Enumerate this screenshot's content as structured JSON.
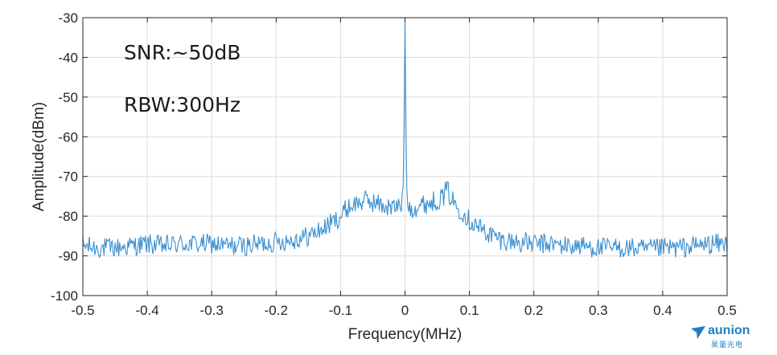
{
  "chart_data": {
    "type": "line",
    "title": "",
    "xlabel": "Frequency(MHz)",
    "ylabel": "Amplitude(dBm)",
    "xlim": [
      -0.5,
      0.5
    ],
    "ylim": [
      -100,
      -30
    ],
    "xticks": [
      -0.5,
      -0.4,
      -0.3,
      -0.2,
      -0.1,
      0,
      0.1,
      0.2,
      0.3,
      0.4,
      0.5
    ],
    "yticks": [
      -100,
      -90,
      -80,
      -70,
      -60,
      -50,
      -40,
      -30
    ],
    "xtick_labels": [
      "-0.5",
      "-0.4",
      "-0.3",
      "-0.2",
      "-0.1",
      "0",
      "0.1",
      "0.2",
      "0.3",
      "0.4",
      "0.5"
    ],
    "ytick_labels": [
      "-100",
      "-90",
      "-80",
      "-70",
      "-60",
      "-50",
      "-40",
      "-30"
    ],
    "grid": true,
    "annotations": [
      "SNR:~50dB",
      "RBW:300Hz"
    ],
    "series": [
      {
        "color": "#3a8fd0",
        "x": [
          -0.5,
          -0.475,
          -0.45,
          -0.425,
          -0.4,
          -0.375,
          -0.35,
          -0.325,
          -0.3,
          -0.275,
          -0.25,
          -0.225,
          -0.2,
          -0.175,
          -0.15,
          -0.125,
          -0.1,
          -0.09,
          -0.08,
          -0.07,
          -0.06,
          -0.05,
          -0.04,
          -0.03,
          -0.02,
          -0.01,
          -0.004,
          -0.002,
          -0.001,
          0,
          0.001,
          0.002,
          0.004,
          0.01,
          0.02,
          0.03,
          0.04,
          0.05,
          0.06,
          0.065,
          0.07,
          0.08,
          0.09,
          0.1,
          0.125,
          0.15,
          0.175,
          0.2,
          0.225,
          0.25,
          0.275,
          0.3,
          0.325,
          0.35,
          0.375,
          0.4,
          0.425,
          0.45,
          0.475,
          0.5
        ],
        "y": [
          -87.5,
          -88,
          -88,
          -87.5,
          -87,
          -87.5,
          -87,
          -87,
          -87,
          -87.5,
          -87.5,
          -87,
          -86.5,
          -86,
          -85,
          -83,
          -80,
          -78,
          -77,
          -76.5,
          -76,
          -76.5,
          -77,
          -77.5,
          -78,
          -77.5,
          -76.5,
          -70,
          -45,
          -31,
          -45,
          -70,
          -77,
          -78,
          -77.5,
          -77,
          -76.5,
          -76,
          -75,
          -73,
          -75,
          -77.5,
          -79,
          -81,
          -84,
          -86,
          -86.5,
          -87,
          -87,
          -87.5,
          -87.5,
          -88,
          -88,
          -88,
          -88.5,
          -88,
          -88,
          -87.5,
          -87,
          -87
        ]
      }
    ]
  },
  "logo": {
    "name": "aunion",
    "sub": "昊量光电"
  }
}
